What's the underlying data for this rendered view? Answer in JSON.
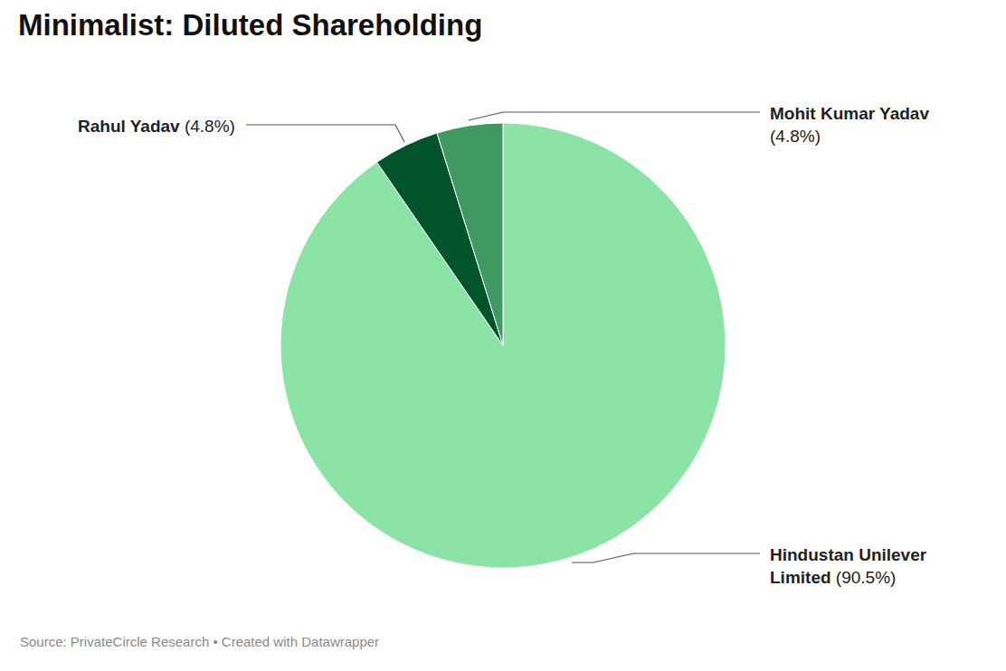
{
  "chart_data": {
    "type": "pie",
    "title": "Minimalist: Diluted Shareholding",
    "source": "Source: PrivateCircle Research • Created with Datawrapper",
    "categories": [
      "Hindustan Unilever Limited",
      "Rahul Yadav",
      "Mohit Kumar Yadav"
    ],
    "values": [
      90.5,
      4.8,
      4.8
    ],
    "value_labels": [
      "(90.5%)",
      "(4.8%)",
      "(4.8%)"
    ],
    "colors": [
      "#8be3a5",
      "#00532a",
      "#3f9a62"
    ],
    "data_labels": true
  }
}
